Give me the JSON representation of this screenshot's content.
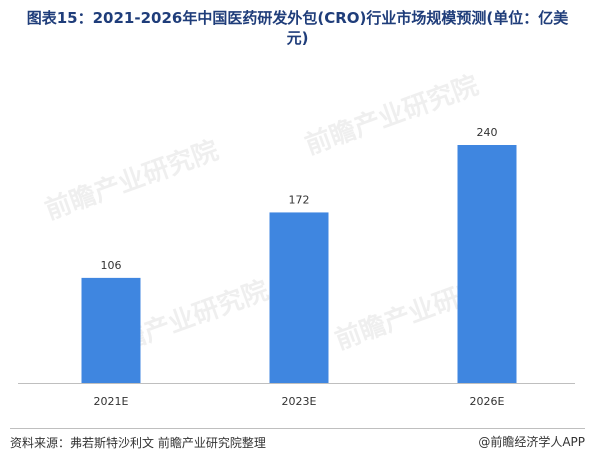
{
  "title": "图表15：2021-2026年中国医药研发外包(CRO)行业市场规模预测(单位：亿美元)",
  "source": "资料来源：弗若斯特沙利文 前瞻产业研究院整理",
  "brand": "@前瞻经济学人APP",
  "watermark": "前瞻产业研究院",
  "colors": {
    "bar": "#3f86e0",
    "title": "#1f3d7a",
    "axis": "#bfbfbf"
  },
  "chart_data": {
    "type": "bar",
    "categories": [
      "2021E",
      "2023E",
      "2026E"
    ],
    "values": [
      106,
      172,
      240
    ],
    "title": "",
    "xlabel": "",
    "ylabel": "",
    "ylim": [
      0,
      260
    ],
    "grid": false,
    "legend": "none"
  }
}
